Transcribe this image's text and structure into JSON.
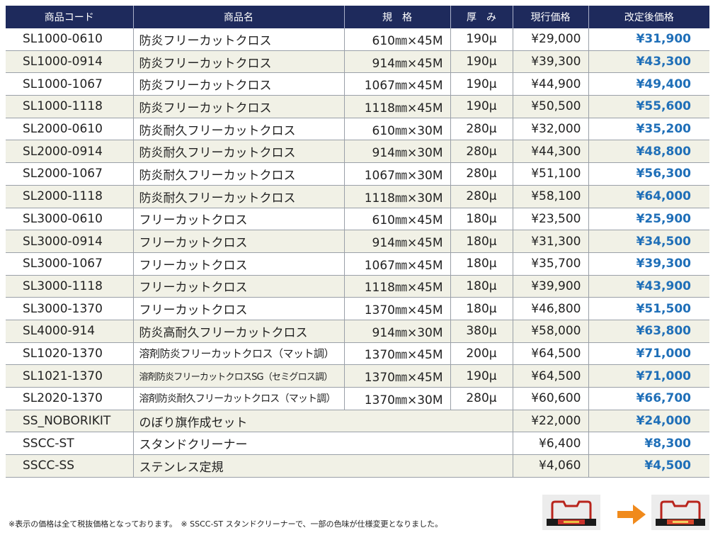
{
  "table": {
    "headers": [
      "商品コード",
      "商品名",
      "規　格",
      "厚　み",
      "現行価格",
      "改定後価格"
    ],
    "rows": [
      {
        "code": "SL1000-0610",
        "name": "防炎フリーカットクロス",
        "spec": "610㎜×45M",
        "thickness": "190μ",
        "current": "¥29,000",
        "new": "¥31,900"
      },
      {
        "code": "SL1000-0914",
        "name": "防炎フリーカットクロス",
        "spec": "914㎜×45M",
        "thickness": "190μ",
        "current": "¥39,300",
        "new": "¥43,300"
      },
      {
        "code": "SL1000-1067",
        "name": "防炎フリーカットクロス",
        "spec": "1067㎜×45M",
        "thickness": "190μ",
        "current": "¥44,900",
        "new": "¥49,400"
      },
      {
        "code": "SL1000-1118",
        "name": "防炎フリーカットクロス",
        "spec": "1118㎜×45M",
        "thickness": "190μ",
        "current": "¥50,500",
        "new": "¥55,600"
      },
      {
        "code": "SL2000-0610",
        "name": "防炎耐久フリーカットクロス",
        "spec": "610㎜×30M",
        "thickness": "280μ",
        "current": "¥32,000",
        "new": "¥35,200"
      },
      {
        "code": "SL2000-0914",
        "name": "防炎耐久フリーカットクロス",
        "spec": "914㎜×30M",
        "thickness": "280μ",
        "current": "¥44,300",
        "new": "¥48,800"
      },
      {
        "code": "SL2000-1067",
        "name": "防炎耐久フリーカットクロス",
        "spec": "1067㎜×30M",
        "thickness": "280μ",
        "current": "¥51,100",
        "new": "¥56,300"
      },
      {
        "code": "SL2000-1118",
        "name": "防炎耐久フリーカットクロス",
        "spec": "1118㎜×30M",
        "thickness": "280μ",
        "current": "¥58,100",
        "new": "¥64,000"
      },
      {
        "code": "SL3000-0610",
        "name": "フリーカットクロス",
        "spec": "610㎜×45M",
        "thickness": "180μ",
        "current": "¥23,500",
        "new": "¥25,900"
      },
      {
        "code": "SL3000-0914",
        "name": "フリーカットクロス",
        "spec": "914㎜×45M",
        "thickness": "180μ",
        "current": "¥31,300",
        "new": "¥34,500"
      },
      {
        "code": "SL3000-1067",
        "name": "フリーカットクロス",
        "spec": "1067㎜×45M",
        "thickness": "180μ",
        "current": "¥35,700",
        "new": "¥39,300"
      },
      {
        "code": "SL3000-1118",
        "name": "フリーカットクロス",
        "spec": "1118㎜×45M",
        "thickness": "180μ",
        "current": "¥39,900",
        "new": "¥43,900"
      },
      {
        "code": "SL3000-1370",
        "name": "フリーカットクロス",
        "spec": "1370㎜×45M",
        "thickness": "180μ",
        "current": "¥46,800",
        "new": "¥51,500"
      },
      {
        "code": "SL4000-914",
        "name": "防炎高耐久フリーカットクロス",
        "spec": "914㎜×30M",
        "thickness": "380μ",
        "current": "¥58,000",
        "new": "¥63,800"
      },
      {
        "code": "SL1020-1370",
        "name": "溶剤防炎フリーカットクロス（マット調）",
        "spec": "1370㎜×45M",
        "thickness": "200μ",
        "current": "¥64,500",
        "new": "¥71,000"
      },
      {
        "code": "SL1021-1370",
        "name": "溶剤防炎フリーカットクロスSG（セミグロス調）",
        "spec": "1370㎜×45M",
        "thickness": "190μ",
        "current": "¥64,500",
        "new": "¥71,000"
      },
      {
        "code": "SL2020-1370",
        "name": "溶剤防炎耐久フリーカットクロス（マット調）",
        "spec": "1370㎜×30M",
        "thickness": "280μ",
        "current": "¥60,600",
        "new": "¥66,700"
      },
      {
        "code": "SS_NOBORIKIT",
        "name": "のぼり旗作成セット",
        "spec": "",
        "thickness": "",
        "current": "¥22,000",
        "new": "¥24,000"
      },
      {
        "code": "SSCC-ST",
        "name": "スタンドクリーナー",
        "spec": "",
        "thickness": "",
        "current": "¥6,400",
        "new": "¥8,300"
      },
      {
        "code": "SSCC-SS",
        "name": "ステンレス定規",
        "spec": "",
        "thickness": "",
        "current": "¥4,060",
        "new": "¥4,500"
      }
    ]
  },
  "footnote": "※表示の価格は全て税抜価格となっております。　※ SSCC-ST スタンドクリーナーで、一部の色味が仕様変更となりました。",
  "colors": {
    "header_bg": "#1e2a5c",
    "new_price": "#1f6fb8",
    "alt_row": "#f1f1e6",
    "arrow": "#f08a1c"
  },
  "icons": {
    "before": "stand-cleaner-before-photo",
    "arrow": "orange-right-arrow-icon",
    "after": "stand-cleaner-after-photo"
  }
}
